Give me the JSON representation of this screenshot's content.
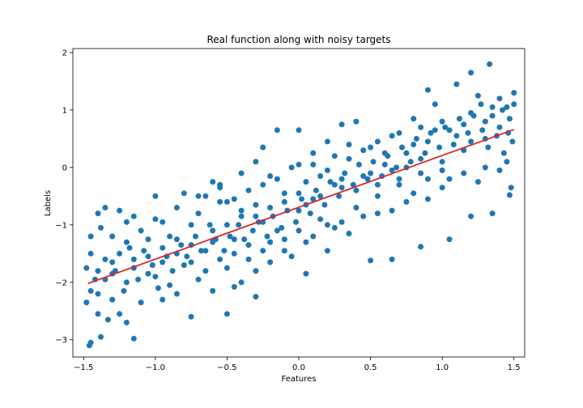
{
  "chart_data": {
    "type": "scatter",
    "title": "Real function along with noisy targets",
    "xlabel": "Features",
    "ylabel": "Labels",
    "xlim": [
      -1.575,
      1.575
    ],
    "ylim": [
      -3.3,
      2.07
    ],
    "xticks": [
      -1.5,
      -1.0,
      -0.5,
      0.0,
      0.5,
      1.0,
      1.5
    ],
    "xtick_labels": [
      "−1.5",
      "−1.0",
      "−0.5",
      "0.0",
      "0.5",
      "1.0",
      "1.5"
    ],
    "yticks": [
      -3,
      -2,
      -1,
      0,
      1,
      2
    ],
    "ytick_labels": [
      "−3",
      "−2",
      "−1",
      "0",
      "1",
      "2"
    ],
    "grid": false,
    "point_color": "#1f77b4",
    "line_color": "#d62728",
    "series": [
      {
        "kind": "points",
        "points": [
          [
            -1.46,
            -3.1
          ],
          [
            -1.45,
            -3.05
          ],
          [
            -1.38,
            -2.95
          ],
          [
            -1.15,
            -2.98
          ],
          [
            -1.33,
            -2.65
          ],
          [
            -1.2,
            -2.7
          ],
          [
            -1.4,
            -2.55
          ],
          [
            -1.25,
            -2.55
          ],
          [
            -0.5,
            -2.55
          ],
          [
            -0.75,
            -2.6
          ],
          [
            -1.48,
            -2.35
          ],
          [
            -1.3,
            -2.3
          ],
          [
            -1.1,
            -2.35
          ],
          [
            -0.95,
            -2.3
          ],
          [
            -0.85,
            -2.2
          ],
          [
            -1.45,
            -2.15
          ],
          [
            -1.2,
            -2.0
          ],
          [
            -0.9,
            -2.05
          ],
          [
            -0.6,
            -2.15
          ],
          [
            -0.4,
            -2.0
          ],
          [
            -1.35,
            -1.95
          ],
          [
            -1.0,
            -1.9
          ],
          [
            -0.7,
            -1.95
          ],
          [
            -0.3,
            -1.8
          ],
          [
            -0.2,
            -1.65
          ],
          [
            -1.4,
            -1.8
          ],
          [
            -1.15,
            -1.75
          ],
          [
            -0.8,
            -1.7
          ],
          [
            -0.55,
            -1.6
          ],
          [
            -0.1,
            -1.45
          ],
          [
            -1.3,
            -1.65
          ],
          [
            -1.05,
            -1.55
          ],
          [
            -0.65,
            -1.45
          ],
          [
            -0.35,
            -1.35
          ],
          [
            0.05,
            -1.3
          ],
          [
            -1.25,
            -1.5
          ],
          [
            -0.95,
            -1.4
          ],
          [
            -0.45,
            -1.25
          ],
          [
            -0.15,
            -1.1
          ],
          [
            0.25,
            -1.05
          ],
          [
            -1.2,
            -1.3
          ],
          [
            -0.9,
            -1.2
          ],
          [
            -0.6,
            -1.1
          ],
          [
            -0.25,
            -0.95
          ],
          [
            0.15,
            -0.9
          ],
          [
            -1.1,
            -1.1
          ],
          [
            -0.75,
            -1.0
          ],
          [
            -0.4,
            -0.85
          ],
          [
            0.0,
            -0.75
          ],
          [
            0.4,
            -0.7
          ],
          [
            -1.0,
            -0.9
          ],
          [
            -0.7,
            -0.8
          ],
          [
            -0.3,
            -0.65
          ],
          [
            0.1,
            -0.55
          ],
          [
            0.55,
            -0.5
          ],
          [
            -0.85,
            -0.7
          ],
          [
            -0.5,
            -0.6
          ],
          [
            -0.1,
            -0.45
          ],
          [
            0.3,
            -0.35
          ],
          [
            0.7,
            -0.3
          ],
          [
            -0.7,
            -0.5
          ],
          [
            -0.35,
            -0.4
          ],
          [
            0.05,
            -0.25
          ],
          [
            0.45,
            -0.15
          ],
          [
            0.85,
            -0.1
          ],
          [
            -0.55,
            -0.3
          ],
          [
            -0.2,
            -0.15
          ],
          [
            0.2,
            -0.05
          ],
          [
            0.6,
            0.05
          ],
          [
            1.0,
            0.1
          ],
          [
            -0.4,
            -0.1
          ],
          [
            0.0,
            0.05
          ],
          [
            0.35,
            0.15
          ],
          [
            0.75,
            0.25
          ],
          [
            1.15,
            0.3
          ],
          [
            -0.3,
            0.1
          ],
          [
            0.1,
            0.25
          ],
          [
            0.5,
            0.35
          ],
          [
            0.9,
            0.45
          ],
          [
            1.3,
            0.5
          ],
          [
            -0.25,
            0.35
          ],
          [
            0.2,
            0.45
          ],
          [
            0.65,
            0.55
          ],
          [
            1.05,
            0.65
          ],
          [
            1.4,
            0.7
          ],
          [
            -0.15,
            0.65
          ],
          [
            0.3,
            0.75
          ],
          [
            0.8,
            0.85
          ],
          [
            1.2,
            0.95
          ],
          [
            1.45,
            1.05
          ],
          [
            0.0,
            0.65
          ],
          [
            0.4,
            0.8
          ],
          [
            0.95,
            1.1
          ],
          [
            1.25,
            1.25
          ],
          [
            1.5,
            1.3
          ],
          [
            0.9,
            1.35
          ],
          [
            1.1,
            1.45
          ],
          [
            1.2,
            1.65
          ],
          [
            1.33,
            1.8
          ],
          [
            1.4,
            1.2
          ],
          [
            -1.45,
            -1.2
          ],
          [
            -1.4,
            -0.8
          ],
          [
            -1.35,
            -0.7
          ],
          [
            -1.25,
            -0.75
          ],
          [
            -1.0,
            -0.5
          ],
          [
            -1.15,
            -0.85
          ],
          [
            -0.8,
            -0.45
          ],
          [
            -0.65,
            -0.5
          ],
          [
            -0.55,
            -0.35
          ],
          [
            -0.6,
            -0.25
          ],
          [
            -1.45,
            -1.5
          ],
          [
            -1.38,
            -1.05
          ],
          [
            -1.3,
            -1.2
          ],
          [
            -1.2,
            -0.95
          ],
          [
            -1.05,
            -1.25
          ],
          [
            -0.95,
            -0.95
          ],
          [
            -0.85,
            -1.25
          ],
          [
            -0.75,
            -1.35
          ],
          [
            -0.6,
            -1.3
          ],
          [
            -0.5,
            -1.0
          ],
          [
            -1.4,
            -2.2
          ],
          [
            -1.3,
            -1.85
          ],
          [
            -1.15,
            -1.6
          ],
          [
            -1.05,
            -1.85
          ],
          [
            -0.95,
            -1.65
          ],
          [
            -0.85,
            -1.5
          ],
          [
            -0.75,
            -1.65
          ],
          [
            -0.65,
            -1.8
          ],
          [
            -0.5,
            -1.75
          ],
          [
            -0.45,
            -1.5
          ],
          [
            -0.35,
            -1.6
          ],
          [
            -0.25,
            -1.45
          ],
          [
            -0.2,
            -1.3
          ],
          [
            -0.1,
            -1.25
          ],
          [
            0.0,
            -1.1
          ],
          [
            0.1,
            -1.2
          ],
          [
            0.2,
            -1.0
          ],
          [
            0.3,
            -0.95
          ],
          [
            0.35,
            -1.15
          ],
          [
            0.45,
            -0.85
          ],
          [
            0.55,
            -0.8
          ],
          [
            0.65,
            -0.75
          ],
          [
            0.75,
            -0.6
          ],
          [
            0.8,
            -0.45
          ],
          [
            0.9,
            -0.55
          ],
          [
            1.0,
            -0.35
          ],
          [
            1.05,
            -0.2
          ],
          [
            1.15,
            -0.1
          ],
          [
            1.25,
            -0.25
          ],
          [
            1.3,
            0.0
          ],
          [
            1.4,
            -0.05
          ],
          [
            1.45,
            0.1
          ],
          [
            1.48,
            -0.35
          ],
          [
            1.47,
            -0.48
          ],
          [
            1.35,
            -0.8
          ],
          [
            1.2,
            -0.85
          ],
          [
            1.05,
            -1.25
          ],
          [
            0.85,
            -1.38
          ],
          [
            0.65,
            -1.6
          ],
          [
            0.5,
            -1.62
          ],
          [
            0.2,
            -1.45
          ],
          [
            0.05,
            -1.85
          ],
          [
            -0.05,
            -1.55
          ],
          [
            -0.3,
            -2.25
          ],
          [
            -0.45,
            -2.08
          ],
          [
            -0.25,
            -0.3
          ],
          [
            -0.15,
            -0.2
          ],
          [
            -0.05,
            0.0
          ],
          [
            0.1,
            0.05
          ],
          [
            0.15,
            -0.15
          ],
          [
            0.25,
            0.2
          ],
          [
            0.35,
            0.4
          ],
          [
            0.45,
            0.3
          ],
          [
            0.55,
            0.45
          ],
          [
            0.6,
            0.25
          ],
          [
            0.7,
            0.6
          ],
          [
            0.8,
            0.4
          ],
          [
            0.85,
            0.7
          ],
          [
            0.95,
            0.65
          ],
          [
            1.0,
            0.8
          ],
          [
            1.1,
            0.55
          ],
          [
            1.15,
            0.75
          ],
          [
            1.2,
            0.45
          ],
          [
            1.3,
            0.8
          ],
          [
            1.35,
            0.9
          ],
          [
            1.42,
            1.0
          ],
          [
            1.47,
            0.85
          ],
          [
            1.5,
            1.1
          ],
          [
            1.27,
            1.1
          ],
          [
            1.35,
            1.05
          ],
          [
            -0.55,
            -0.6
          ],
          [
            -0.45,
            -0.55
          ],
          [
            -0.4,
            -0.75
          ],
          [
            -0.3,
            -0.85
          ],
          [
            -0.2,
            -0.7
          ],
          [
            -0.1,
            -0.6
          ],
          [
            0.0,
            -0.45
          ],
          [
            0.05,
            -0.65
          ],
          [
            0.15,
            -0.5
          ],
          [
            0.25,
            -0.3
          ],
          [
            0.3,
            -0.2
          ],
          [
            0.4,
            -0.4
          ],
          [
            0.5,
            -0.1
          ],
          [
            0.55,
            -0.3
          ],
          [
            0.65,
            -0.05
          ],
          [
            0.7,
            -0.2
          ],
          [
            0.75,
            0.0
          ],
          [
            0.85,
            0.15
          ],
          [
            0.9,
            -0.2
          ],
          [
            1.0,
            -0.05
          ],
          [
            -1.48,
            -1.75
          ],
          [
            -1.42,
            -1.95
          ],
          [
            -1.35,
            -1.6
          ],
          [
            -1.28,
            -1.8
          ],
          [
            -1.22,
            -2.15
          ],
          [
            -1.18,
            -1.4
          ],
          [
            -1.12,
            -1.95
          ],
          [
            -1.08,
            -1.45
          ],
          [
            -1.02,
            -1.7
          ],
          [
            -0.98,
            -2.1
          ],
          [
            -0.92,
            -1.55
          ],
          [
            -0.88,
            -1.8
          ],
          [
            -0.82,
            -1.35
          ],
          [
            -0.78,
            -1.55
          ],
          [
            -0.72,
            -1.2
          ],
          [
            -0.68,
            -1.45
          ],
          [
            -0.62,
            -1.0
          ],
          [
            -0.58,
            -1.25
          ],
          [
            -0.52,
            -1.45
          ],
          [
            -0.48,
            -1.2
          ],
          [
            -0.42,
            -1.0
          ],
          [
            -0.38,
            -1.25
          ],
          [
            -0.32,
            -1.1
          ],
          [
            -0.28,
            -0.95
          ],
          [
            -0.22,
            -1.2
          ],
          [
            -0.18,
            -0.85
          ],
          [
            -0.12,
            -1.05
          ],
          [
            -0.08,
            -0.75
          ],
          [
            -0.02,
            -0.95
          ],
          [
            0.02,
            -0.55
          ],
          [
            0.08,
            -0.8
          ],
          [
            0.12,
            -0.4
          ],
          [
            0.18,
            -0.65
          ],
          [
            0.22,
            -0.25
          ],
          [
            0.28,
            -0.5
          ],
          [
            0.32,
            -0.1
          ],
          [
            0.38,
            -0.3
          ],
          [
            0.42,
            0.05
          ],
          [
            0.48,
            -0.2
          ],
          [
            0.52,
            0.1
          ],
          [
            0.58,
            -0.15
          ],
          [
            0.62,
            0.2
          ],
          [
            0.68,
            0.0
          ],
          [
            0.72,
            0.35
          ],
          [
            0.78,
            0.1
          ],
          [
            0.82,
            0.5
          ],
          [
            0.88,
            0.25
          ],
          [
            0.92,
            0.6
          ],
          [
            0.98,
            0.35
          ],
          [
            1.02,
            0.7
          ],
          [
            1.08,
            0.4
          ],
          [
            1.12,
            0.85
          ],
          [
            1.18,
            0.6
          ],
          [
            1.22,
            0.9
          ],
          [
            1.28,
            0.65
          ],
          [
            1.32,
            0.35
          ],
          [
            1.38,
            0.55
          ],
          [
            1.43,
            0.25
          ],
          [
            1.46,
            0.6
          ],
          [
            1.49,
            0.45
          ]
        ]
      },
      {
        "kind": "line",
        "x": [
          -1.47,
          1.5
        ],
        "y": [
          -2.02,
          0.66
        ]
      }
    ]
  }
}
